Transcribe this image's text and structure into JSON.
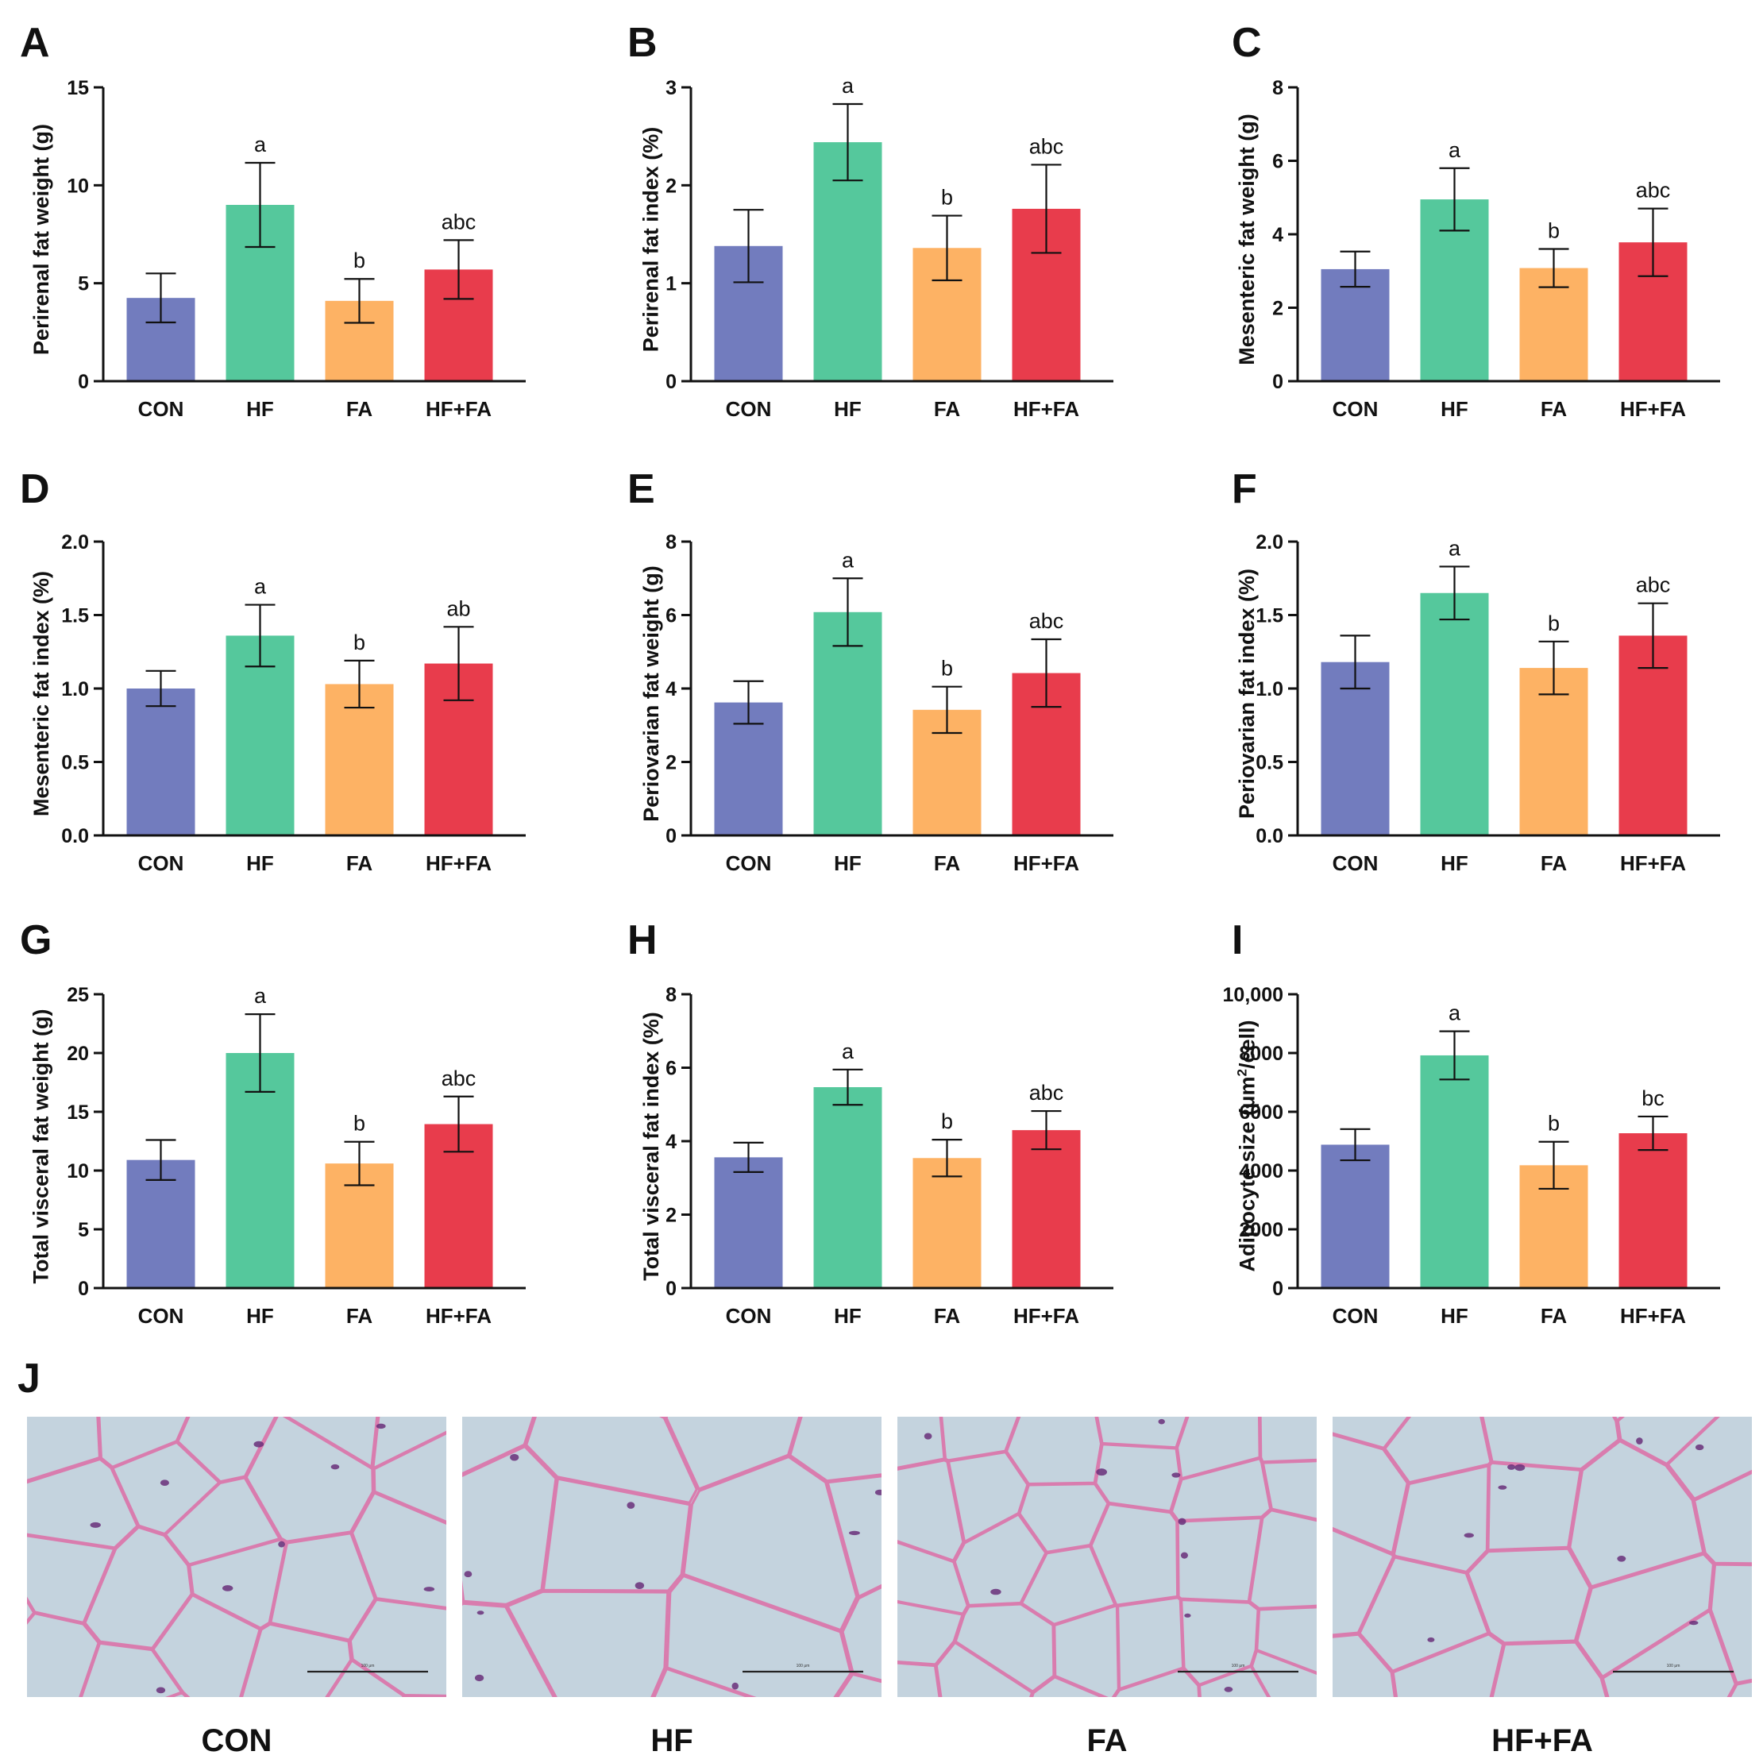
{
  "colors": {
    "CON": "#727cbe",
    "HF": "#55c89c",
    "FA": "#fdb264",
    "HF+FA": "#e83c4c"
  },
  "groups": [
    "CON",
    "HF",
    "FA",
    "HF+FA"
  ],
  "chart_data": [
    {
      "id": "A",
      "type": "bar",
      "ylabel": "Perirenal fat weight (g)",
      "ylim": [
        0,
        15
      ],
      "yticks": [
        0,
        5,
        10,
        15
      ],
      "ytick_labels": [
        "0",
        "5",
        "10",
        "15"
      ],
      "categories": [
        "CON",
        "HF",
        "FA",
        "HF+FA"
      ],
      "values": [
        4.25,
        9.0,
        4.1,
        5.7
      ],
      "errors": [
        1.25,
        2.15,
        1.12,
        1.5
      ],
      "annotations": [
        "",
        "a",
        "b",
        "abc"
      ]
    },
    {
      "id": "B",
      "type": "bar",
      "ylabel": "Perirenal fat index (%)",
      "ylim": [
        0,
        3
      ],
      "yticks": [
        0,
        1,
        2,
        3
      ],
      "ytick_labels": [
        "0",
        "1",
        "2",
        "3"
      ],
      "categories": [
        "CON",
        "HF",
        "FA",
        "HF+FA"
      ],
      "values": [
        1.38,
        2.44,
        1.36,
        1.76
      ],
      "errors": [
        0.37,
        0.39,
        0.33,
        0.45
      ],
      "annotations": [
        "",
        "a",
        "b",
        "abc"
      ]
    },
    {
      "id": "C",
      "type": "bar",
      "ylabel": "Mesenteric fat weight (g)",
      "ylim": [
        0,
        8
      ],
      "yticks": [
        0,
        2,
        4,
        6,
        8
      ],
      "ytick_labels": [
        "0",
        "2",
        "4",
        "6",
        "8"
      ],
      "categories": [
        "CON",
        "HF",
        "FA",
        "HF+FA"
      ],
      "values": [
        3.05,
        4.95,
        3.08,
        3.78
      ],
      "errors": [
        0.48,
        0.85,
        0.52,
        0.92
      ],
      "annotations": [
        "",
        "a",
        "b",
        "abc"
      ]
    },
    {
      "id": "D",
      "type": "bar",
      "ylabel": "Mesenteric fat index (%)",
      "ylim": [
        0,
        2
      ],
      "yticks": [
        0,
        0.5,
        1,
        1.5,
        2
      ],
      "ytick_labels": [
        "0.0",
        "0.5",
        "1.0",
        "1.5",
        "2.0"
      ],
      "categories": [
        "CON",
        "HF",
        "FA",
        "HF+FA"
      ],
      "values": [
        1.0,
        1.36,
        1.03,
        1.17
      ],
      "errors": [
        0.12,
        0.21,
        0.16,
        0.25
      ],
      "annotations": [
        "",
        "a",
        "b",
        "ab"
      ]
    },
    {
      "id": "E",
      "type": "bar",
      "ylabel": "Periovarian fat weight (g)",
      "ylim": [
        0,
        8
      ],
      "yticks": [
        0,
        2,
        4,
        6,
        8
      ],
      "ytick_labels": [
        "0",
        "2",
        "4",
        "6",
        "8"
      ],
      "categories": [
        "CON",
        "HF",
        "FA",
        "HF+FA"
      ],
      "values": [
        3.62,
        6.08,
        3.42,
        4.42
      ],
      "errors": [
        0.58,
        0.92,
        0.63,
        0.92
      ],
      "annotations": [
        "",
        "a",
        "b",
        "abc"
      ]
    },
    {
      "id": "F",
      "type": "bar",
      "ylabel": "Periovarian fat index (%)",
      "ylim": [
        0,
        2
      ],
      "yticks": [
        0,
        0.5,
        1,
        1.5,
        2
      ],
      "ytick_labels": [
        "0.0",
        "0.5",
        "1.0",
        "1.5",
        "2.0"
      ],
      "categories": [
        "CON",
        "HF",
        "FA",
        "HF+FA"
      ],
      "values": [
        1.18,
        1.65,
        1.14,
        1.36
      ],
      "errors": [
        0.18,
        0.18,
        0.18,
        0.22
      ],
      "annotations": [
        "",
        "a",
        "b",
        "abc"
      ]
    },
    {
      "id": "G",
      "type": "bar",
      "ylabel": "Total visceral fat weight (g)",
      "ylim": [
        0,
        25
      ],
      "yticks": [
        0,
        5,
        10,
        15,
        20,
        25
      ],
      "ytick_labels": [
        "0",
        "5",
        "10",
        "15",
        "20",
        "25"
      ],
      "categories": [
        "CON",
        "HF",
        "FA",
        "HF+FA"
      ],
      "values": [
        10.9,
        20.0,
        10.6,
        13.95
      ],
      "errors": [
        1.7,
        3.3,
        1.85,
        2.35
      ],
      "annotations": [
        "",
        "a",
        "b",
        "abc"
      ]
    },
    {
      "id": "H",
      "type": "bar",
      "ylabel": "Total visceral fat index (%)",
      "ylim": [
        0,
        8
      ],
      "yticks": [
        0,
        2,
        4,
        6,
        8
      ],
      "ytick_labels": [
        "0",
        "2",
        "4",
        "6",
        "8"
      ],
      "categories": [
        "CON",
        "HF",
        "FA",
        "HF+FA"
      ],
      "values": [
        3.56,
        5.47,
        3.54,
        4.3
      ],
      "errors": [
        0.4,
        0.48,
        0.5,
        0.52
      ],
      "annotations": [
        "",
        "a",
        "b",
        "abc"
      ]
    },
    {
      "id": "I",
      "type": "bar",
      "ylabel": "Adipocyte size (μm",
      "ylabel_sup": "2",
      "ylabel_suffix": "/cell)",
      "ylim": [
        0,
        10000
      ],
      "yticks": [
        0,
        2000,
        4000,
        6000,
        8000,
        10000
      ],
      "ytick_labels": [
        "0",
        "2000",
        "4000",
        "6000",
        "8000",
        "10,000"
      ],
      "categories": [
        "CON",
        "HF",
        "FA",
        "HF+FA"
      ],
      "values": [
        4880,
        7920,
        4180,
        5270
      ],
      "errors": [
        530,
        820,
        800,
        570
      ],
      "annotations": [
        "",
        "a",
        "b",
        "bc"
      ]
    }
  ],
  "micrographs": {
    "panel_letter": "J",
    "items": [
      {
        "label": "CON",
        "scale_text": "100 μm"
      },
      {
        "label": "HF",
        "scale_text": "100 μm"
      },
      {
        "label": "FA",
        "scale_text": "100 μm"
      },
      {
        "label": "HF+FA",
        "scale_text": "100 μm"
      }
    ]
  }
}
